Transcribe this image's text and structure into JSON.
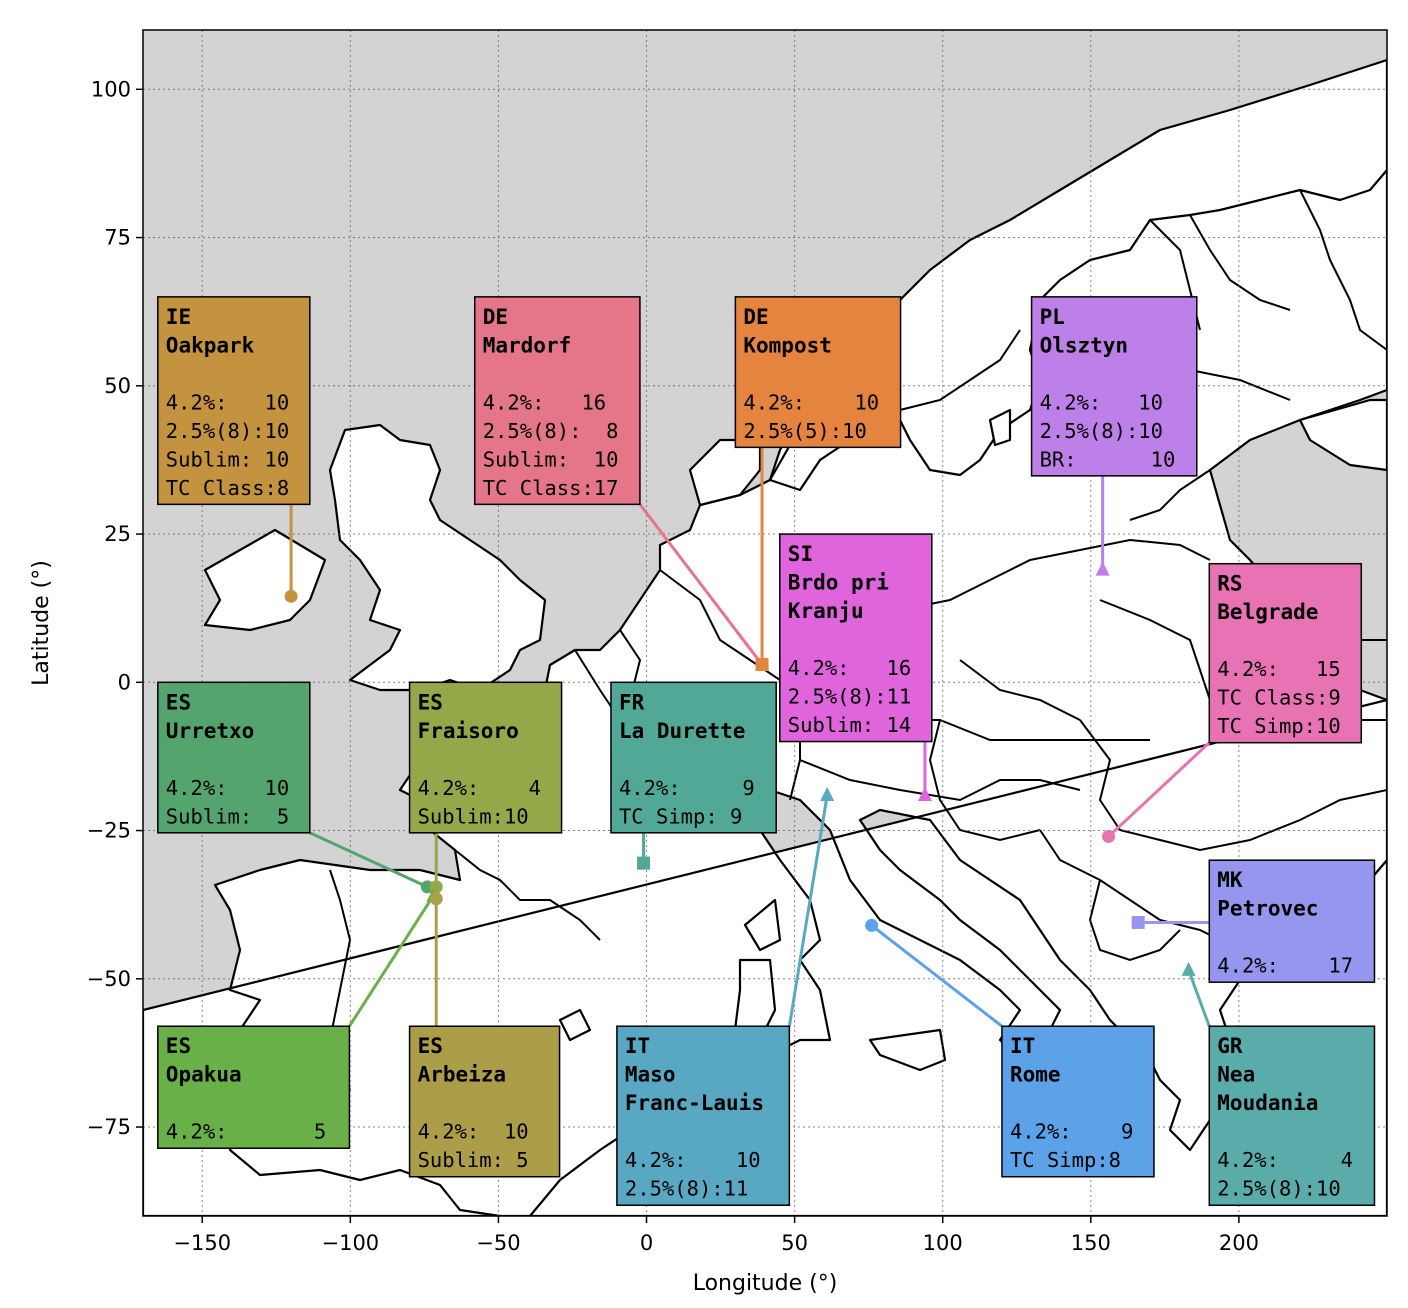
{
  "axes": {
    "xlabel": "Longitude (°)",
    "ylabel": "Latitude (°)",
    "xlim": [
      -170,
      250
    ],
    "ylim": [
      -90,
      110
    ],
    "xticks": [
      -150,
      -100,
      -50,
      0,
      50,
      100,
      150,
      200
    ],
    "yticks": [
      -75,
      -50,
      -25,
      0,
      25,
      50,
      75,
      100
    ],
    "xtick_labels": [
      "−150",
      "−100",
      "−50",
      "0",
      "50",
      "100",
      "150",
      "200"
    ],
    "ytick_labels": [
      "−75",
      "−50",
      "−25",
      "0",
      "25",
      "50",
      "75",
      "100"
    ],
    "grid": true
  },
  "colors": {
    "ocean": "#d3d3d3",
    "land": "#ffffff",
    "border": "#000000"
  },
  "sites": [
    {
      "id": "ie-oakpark",
      "country": "IE",
      "name": [
        "Oakpark"
      ],
      "lines": [
        "4.2%:   10",
        "2.5%(8):10",
        "Sublim: 10",
        "TC Class:8"
      ],
      "color": "#c49340",
      "marker": "circle",
      "point": [
        -120,
        14.5
      ],
      "box": [
        -165,
        65
      ]
    },
    {
      "id": "de-mardorf",
      "country": "DE",
      "name": [
        "Mardorf"
      ],
      "lines": [
        "4.2%:   16",
        "2.5%(8):  8",
        "Sublim:  10",
        "TC Class:17"
      ],
      "color": "#e57589",
      "marker": "triangle",
      "point": [
        39,
        3
      ],
      "box": [
        -58,
        65
      ]
    },
    {
      "id": "de-kompost",
      "country": "DE",
      "name": [
        "Kompost"
      ],
      "lines": [
        "4.2%:    10",
        "2.5%(5):10"
      ],
      "color": "#e5843f",
      "marker": "square",
      "point": [
        39,
        3
      ],
      "box": [
        30,
        65
      ]
    },
    {
      "id": "pl-olsztyn",
      "country": "PL",
      "name": [
        "Olsztyn"
      ],
      "lines": [
        "4.2%:   10",
        "2.5%(8):10",
        "BR:      10"
      ],
      "color": "#bd7fe8",
      "marker": "triangle",
      "point": [
        154,
        19
      ],
      "box": [
        130,
        65
      ]
    },
    {
      "id": "si-brdo",
      "country": "SI",
      "name": [
        "Brdo pri",
        "Kranju"
      ],
      "lines": [
        "4.2%:   16",
        "2.5%(8):11",
        "Sublim: 14"
      ],
      "color": "#e064dc",
      "marker": "triangle",
      "point": [
        94,
        -19
      ],
      "box": [
        45,
        25
      ]
    },
    {
      "id": "rs-belgrade",
      "country": "RS",
      "name": [
        "Belgrade"
      ],
      "lines": [
        "4.2%:   15",
        "TC Class:9",
        "TC Simp:10"
      ],
      "color": "#e873b4",
      "marker": "circle",
      "point": [
        156,
        -26
      ],
      "box": [
        190,
        20
      ]
    },
    {
      "id": "es-urretxo",
      "country": "ES",
      "name": [
        "Urretxo"
      ],
      "lines": [
        "4.2%:   10",
        "Sublim:  5"
      ],
      "color": "#54a46d",
      "marker": "circle",
      "point": [
        -74,
        -34.5
      ],
      "box": [
        -165,
        0
      ]
    },
    {
      "id": "es-fraisoro",
      "country": "ES",
      "name": [
        "Fraisoro"
      ],
      "lines": [
        "4.2%:    4",
        "Sublim:10"
      ],
      "color": "#93a848",
      "marker": "circle",
      "point": [
        -71,
        -34.5
      ],
      "box": [
        -80,
        0
      ]
    },
    {
      "id": "fr-la-durette",
      "country": "FR",
      "name": [
        "La Durette"
      ],
      "lines": [
        "4.2%:     9",
        "TC Simp: 9"
      ],
      "color": "#52a896",
      "marker": "square",
      "point": [
        -1,
        -30.5
      ],
      "box": [
        -12,
        0
      ]
    },
    {
      "id": "mk-petrovec",
      "country": "MK",
      "name": [
        "Petrovec"
      ],
      "lines": [
        "4.2%:    17"
      ],
      "color": "#9696ee",
      "marker": "square",
      "point": [
        166,
        -40.5
      ],
      "box": [
        190,
        -30
      ]
    },
    {
      "id": "es-opakua",
      "country": "ES",
      "name": [
        "Opakua"
      ],
      "lines": [
        "4.2%:       5"
      ],
      "color": "#6ab048",
      "marker": "triangle",
      "point": [
        -72,
        -36
      ],
      "box": [
        -165,
        -58
      ]
    },
    {
      "id": "es-arbeiza",
      "country": "ES",
      "name": [
        "Arbeiza"
      ],
      "lines": [
        "4.2%:  10",
        "Sublim: 5"
      ],
      "color": "#ac9e48",
      "marker": "circle",
      "point": [
        -71,
        -36.5
      ],
      "box": [
        -80,
        -58
      ]
    },
    {
      "id": "it-maso",
      "country": "IT",
      "name": [
        "Maso",
        "Franc-Lauis"
      ],
      "lines": [
        "4.2%:    10",
        "2.5%(8):11"
      ],
      "color": "#58a8c4",
      "marker": "triangle",
      "point": [
        61,
        -19
      ],
      "box": [
        -10,
        -58
      ]
    },
    {
      "id": "it-rome",
      "country": "IT",
      "name": [
        "Rome"
      ],
      "lines": [
        "4.2%:    9",
        "TC Simp:8"
      ],
      "color": "#5ba2e8",
      "marker": "circle",
      "point": [
        76,
        -41
      ],
      "box": [
        120,
        -58
      ]
    },
    {
      "id": "gr-nea-moudania",
      "country": "GR",
      "name": [
        "Nea",
        "Moudania"
      ],
      "lines": [
        "4.2%:     4",
        "2.5%(8):10"
      ],
      "color": "#5aacaa",
      "marker": "triangle",
      "point": [
        183,
        -48.5
      ],
      "box": [
        190,
        -58
      ]
    }
  ]
}
